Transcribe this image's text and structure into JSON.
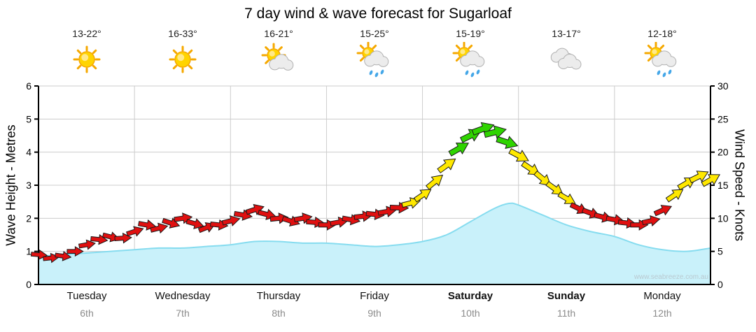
{
  "title": "7 day wind & wave forecast for Sugarloaf",
  "watermark": "www.seabreeze.com.au",
  "forecast_days": [
    {
      "name": "Tuesday",
      "date": "6th",
      "temp": "13-22°",
      "icon": "sunny",
      "weekend": false
    },
    {
      "name": "Wednesday",
      "date": "7th",
      "temp": "16-33°",
      "icon": "sunny",
      "weekend": false
    },
    {
      "name": "Thursday",
      "date": "8th",
      "temp": "16-21°",
      "icon": "partly-cloudy",
      "weekend": false
    },
    {
      "name": "Friday",
      "date": "9th",
      "temp": "15-25°",
      "icon": "showers",
      "weekend": false
    },
    {
      "name": "Saturday",
      "date": "10th",
      "temp": "15-19°",
      "icon": "showers",
      "weekend": true
    },
    {
      "name": "Sunday",
      "date": "11th",
      "temp": "13-17°",
      "icon": "cloudy",
      "weekend": true
    },
    {
      "name": "Monday",
      "date": "12th",
      "temp": "12-18°",
      "icon": "showers",
      "weekend": false
    }
  ],
  "chart_data": {
    "type": "area",
    "title": "7 day wind & wave forecast for Sugarloaf",
    "x_axis": {
      "days": 7,
      "labels": [
        "Tuesday",
        "Wednesday",
        "Thursday",
        "Friday",
        "Saturday",
        "Sunday",
        "Monday"
      ]
    },
    "y_left": {
      "label": "Wave Height - Metres",
      "min": 0,
      "max": 6,
      "ticks": [
        0,
        1,
        2,
        3,
        4,
        5,
        6
      ]
    },
    "y_right": {
      "label": "Wind Speed - Knots",
      "min": 0,
      "max": 30,
      "ticks": [
        0,
        5,
        10,
        15,
        20,
        25,
        30
      ]
    },
    "grid": true,
    "wave_height_m": {
      "series_name": "Wave Height (metres)",
      "points": [
        [
          0,
          0.85
        ],
        [
          0.25,
          0.9
        ],
        [
          0.5,
          0.95
        ],
        [
          0.75,
          1.0
        ],
        [
          1,
          1.05
        ],
        [
          1.25,
          1.1
        ],
        [
          1.5,
          1.1
        ],
        [
          1.75,
          1.15
        ],
        [
          2,
          1.2
        ],
        [
          2.25,
          1.3
        ],
        [
          2.5,
          1.3
        ],
        [
          2.75,
          1.25
        ],
        [
          3,
          1.25
        ],
        [
          3.25,
          1.2
        ],
        [
          3.5,
          1.15
        ],
        [
          3.75,
          1.2
        ],
        [
          4,
          1.3
        ],
        [
          4.25,
          1.5
        ],
        [
          4.5,
          1.9
        ],
        [
          4.75,
          2.3
        ],
        [
          4.9,
          2.45
        ],
        [
          5,
          2.4
        ],
        [
          5.25,
          2.1
        ],
        [
          5.5,
          1.8
        ],
        [
          5.75,
          1.6
        ],
        [
          6,
          1.45
        ],
        [
          6.25,
          1.2
        ],
        [
          6.5,
          1.05
        ],
        [
          6.75,
          1.0
        ],
        [
          7,
          1.1
        ]
      ]
    },
    "wind_knots": {
      "series_name": "Wind Speed (knots)",
      "point_format": [
        "day_fraction",
        "knots",
        "arrow_angle_deg"
      ],
      "points": [
        [
          0,
          4.5,
          5
        ],
        [
          0.125,
          4.0,
          -6
        ],
        [
          0.25,
          4.3,
          8
        ],
        [
          0.375,
          5.0,
          0
        ],
        [
          0.5,
          6.0,
          -10
        ],
        [
          0.625,
          6.8,
          6
        ],
        [
          0.75,
          7.2,
          14
        ],
        [
          0.875,
          7.0,
          -4
        ],
        [
          1,
          8.0,
          -18
        ],
        [
          1.125,
          9.0,
          10
        ],
        [
          1.25,
          8.5,
          -14
        ],
        [
          1.375,
          9.3,
          18
        ],
        [
          1.5,
          10.0,
          -8
        ],
        [
          1.625,
          9.2,
          16
        ],
        [
          1.75,
          8.6,
          -22
        ],
        [
          1.875,
          9.0,
          6
        ],
        [
          2,
          9.6,
          -14
        ],
        [
          2.125,
          10.5,
          10
        ],
        [
          2.25,
          11.3,
          -18
        ],
        [
          2.375,
          10.6,
          14
        ],
        [
          2.5,
          10.0,
          -6
        ],
        [
          2.625,
          9.6,
          18
        ],
        [
          2.75,
          10.0,
          -10
        ],
        [
          2.875,
          9.4,
          4
        ],
        [
          3,
          9.0,
          0
        ],
        [
          3.125,
          9.4,
          -10
        ],
        [
          3.25,
          9.8,
          10
        ],
        [
          3.375,
          10.3,
          -6
        ],
        [
          3.5,
          10.6,
          6
        ],
        [
          3.625,
          11.0,
          -10
        ],
        [
          3.75,
          11.6,
          2
        ],
        [
          3.875,
          12.3,
          -14
        ],
        [
          4,
          13.5,
          -34
        ],
        [
          4.125,
          15.5,
          -40
        ],
        [
          4.25,
          18.0,
          -36
        ],
        [
          4.375,
          20.5,
          -30
        ],
        [
          4.5,
          22.5,
          -26
        ],
        [
          4.625,
          23.5,
          -20
        ],
        [
          4.75,
          23.0,
          -14
        ],
        [
          4.875,
          21.5,
          18
        ],
        [
          5,
          19.5,
          28
        ],
        [
          5.125,
          17.5,
          34
        ],
        [
          5.25,
          16.0,
          40
        ],
        [
          5.375,
          14.5,
          36
        ],
        [
          5.5,
          13.0,
          30
        ],
        [
          5.625,
          11.5,
          26
        ],
        [
          5.75,
          10.8,
          20
        ],
        [
          5.875,
          10.2,
          14
        ],
        [
          6,
          9.8,
          10
        ],
        [
          6.125,
          9.3,
          6
        ],
        [
          6.25,
          9.0,
          0
        ],
        [
          6.375,
          9.6,
          -12
        ],
        [
          6.5,
          11.2,
          -24
        ],
        [
          6.625,
          13.5,
          -34
        ],
        [
          6.75,
          15.3,
          -30
        ],
        [
          6.875,
          16.3,
          -26
        ],
        [
          7,
          15.8,
          -30
        ]
      ],
      "speed_color_bands": {
        "moderate_min": 12,
        "strong_min": 20
      },
      "colors": {
        "light": "#e01010",
        "moderate": "#ffe800",
        "strong": "#2fd400",
        "outline": "#1a1a1a"
      }
    },
    "styles": {
      "wave_fill": "#c9f1fa",
      "wave_stroke": "#86dcef",
      "grid_color": "#cccccc",
      "axis_color": "#000000"
    }
  }
}
